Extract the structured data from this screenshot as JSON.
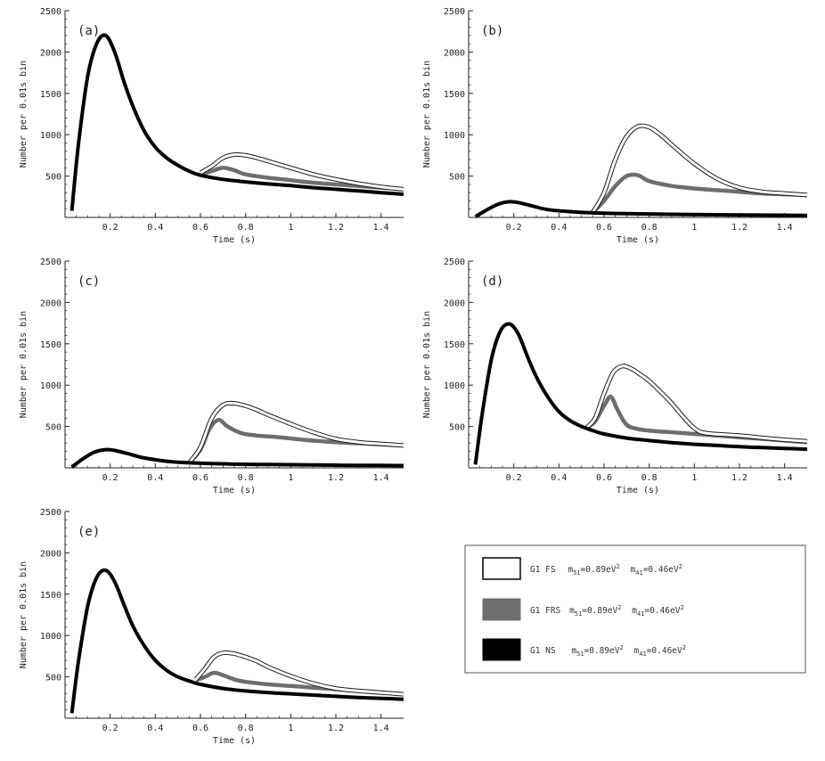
{
  "colors": {
    "fs": "#1a1a1a",
    "frs": "#6e6e6e",
    "ns": "#000000",
    "axis": "#222222"
  },
  "legend": {
    "items": [
      {
        "key": "fs",
        "text": "G1 FS",
        "swatch": "outline"
      },
      {
        "key": "frs",
        "text": "G1 FRS",
        "swatch": "gray"
      },
      {
        "key": "ns",
        "text": "G1 NS",
        "swatch": "black"
      }
    ],
    "mass_a_prefix": "m",
    "mass_a_sub": "51",
    "mass_a_value": "=0.89eV",
    "mass_b_prefix": "m",
    "mass_b_sub": "41",
    "mass_b_value": "=0.46eV",
    "exp": "2"
  },
  "chart_data": [
    {
      "type": "line",
      "panel": "(a)",
      "xlabel": "Time (s)",
      "ylabel": "Number per 0.01s bin",
      "xlim": [
        0,
        1.5
      ],
      "ylim": [
        0,
        2500
      ],
      "xticks": [
        0.2,
        0.4,
        0.6,
        0.8,
        1,
        1.2,
        1.4
      ],
      "xtick_labels": [
        "0.2",
        "0.4",
        "0.6",
        "0.8",
        "1",
        "1.2",
        "1.4"
      ],
      "yticks": [
        500,
        1000,
        1500,
        2000,
        2500
      ],
      "series": [
        {
          "key": "ns",
          "x": [
            0.03,
            0.06,
            0.1,
            0.14,
            0.18,
            0.22,
            0.26,
            0.3,
            0.35,
            0.4,
            0.45,
            0.5,
            0.55,
            0.6,
            0.7,
            0.8,
            0.9,
            1.0,
            1.1,
            1.2,
            1.3,
            1.4,
            1.5
          ],
          "y": [
            80,
            900,
            1700,
            2100,
            2200,
            2000,
            1650,
            1350,
            1050,
            850,
            720,
            630,
            560,
            510,
            460,
            430,
            405,
            385,
            360,
            340,
            320,
            300,
            280
          ]
        },
        {
          "key": "frs",
          "x": [
            0.6,
            0.65,
            0.7,
            0.75,
            0.8,
            0.9,
            1.0,
            1.1,
            1.2,
            1.3,
            1.4,
            1.5
          ],
          "y": [
            520,
            560,
            600,
            570,
            520,
            480,
            450,
            420,
            400,
            380,
            360,
            340
          ]
        },
        {
          "key": "fs",
          "x": [
            0.6,
            0.65,
            0.7,
            0.75,
            0.8,
            0.85,
            0.9,
            1.0,
            1.1,
            1.2,
            1.3,
            1.4,
            1.5
          ],
          "y": [
            540,
            620,
            720,
            760,
            750,
            720,
            680,
            600,
            520,
            460,
            410,
            370,
            340
          ]
        }
      ]
    },
    {
      "type": "line",
      "panel": "(b)",
      "xlabel": "Time (s)",
      "ylabel": "Number per 0.01s bin",
      "xlim": [
        0,
        1.5
      ],
      "ylim": [
        0,
        2500
      ],
      "xticks": [
        0.2,
        0.4,
        0.6,
        0.8,
        1,
        1.2,
        1.4
      ],
      "xtick_labels": [
        "0.2",
        "0.4",
        "0.6",
        "0.8",
        "1",
        "1.2",
        "1.4"
      ],
      "yticks": [
        500,
        1000,
        1500,
        2000,
        2500
      ],
      "series": [
        {
          "key": "ns",
          "x": [
            0.03,
            0.08,
            0.13,
            0.18,
            0.22,
            0.28,
            0.35,
            0.45,
            0.55,
            0.7,
            0.9,
            1.1,
            1.3,
            1.5
          ],
          "y": [
            10,
            90,
            160,
            190,
            180,
            140,
            95,
            70,
            55,
            45,
            38,
            32,
            28,
            25
          ]
        },
        {
          "key": "frs",
          "x": [
            0.55,
            0.6,
            0.65,
            0.7,
            0.75,
            0.8,
            0.9,
            1.0,
            1.1,
            1.2,
            1.3,
            1.4,
            1.5
          ],
          "y": [
            60,
            200,
            380,
            500,
            510,
            440,
            380,
            350,
            330,
            310,
            290,
            280,
            270
          ]
        },
        {
          "key": "fs",
          "x": [
            0.55,
            0.6,
            0.65,
            0.7,
            0.75,
            0.8,
            0.85,
            0.9,
            1.0,
            1.1,
            1.2,
            1.3,
            1.4,
            1.5
          ],
          "y": [
            60,
            300,
            700,
            980,
            1100,
            1090,
            1000,
            880,
            650,
            470,
            360,
            310,
            290,
            270
          ]
        }
      ]
    },
    {
      "type": "line",
      "panel": "(c)",
      "xlabel": "Time (s)",
      "ylabel": "Number per 0.01s bin",
      "xlim": [
        0,
        1.5
      ],
      "ylim": [
        0,
        2500
      ],
      "xticks": [
        0.2,
        0.4,
        0.6,
        0.8,
        1,
        1.2,
        1.4
      ],
      "xtick_labels": [
        "0.2",
        "0.4",
        "0.6",
        "0.8",
        "1",
        "1.2",
        "1.4"
      ],
      "yticks": [
        500,
        1000,
        1500,
        2000,
        2500
      ],
      "series": [
        {
          "key": "ns",
          "x": [
            0.03,
            0.08,
            0.13,
            0.18,
            0.22,
            0.28,
            0.35,
            0.45,
            0.55,
            0.7,
            0.9,
            1.1,
            1.3,
            1.5
          ],
          "y": [
            10,
            110,
            190,
            220,
            210,
            170,
            120,
            80,
            60,
            48,
            40,
            34,
            30,
            27
          ]
        },
        {
          "key": "frs",
          "x": [
            0.55,
            0.6,
            0.64,
            0.68,
            0.72,
            0.78,
            0.85,
            0.95,
            1.05,
            1.2,
            1.35,
            1.5
          ],
          "y": [
            60,
            220,
            470,
            580,
            500,
            420,
            390,
            370,
            340,
            310,
            290,
            270
          ]
        },
        {
          "key": "fs",
          "x": [
            0.55,
            0.6,
            0.65,
            0.7,
            0.75,
            0.8,
            0.85,
            0.9,
            1.0,
            1.1,
            1.2,
            1.3,
            1.4,
            1.5
          ],
          "y": [
            60,
            250,
            600,
            760,
            780,
            750,
            700,
            640,
            530,
            430,
            350,
            310,
            290,
            270
          ]
        }
      ]
    },
    {
      "type": "line",
      "panel": "(d)",
      "xlabel": "Time (s)",
      "ylabel": "Number per 0.01s bin",
      "xlim": [
        0,
        1.5
      ],
      "ylim": [
        0,
        2500
      ],
      "xticks": [
        0.2,
        0.4,
        0.6,
        0.8,
        1,
        1.2,
        1.4
      ],
      "xtick_labels": [
        "0.2",
        "0.4",
        "0.6",
        "0.8",
        "1",
        "1.2",
        "1.4"
      ],
      "yticks": [
        500,
        1000,
        1500,
        2000,
        2500
      ],
      "series": [
        {
          "key": "ns",
          "x": [
            0.03,
            0.06,
            0.1,
            0.14,
            0.18,
            0.22,
            0.26,
            0.3,
            0.35,
            0.4,
            0.45,
            0.5,
            0.55,
            0.6,
            0.7,
            0.8,
            0.9,
            1.0,
            1.1,
            1.2,
            1.3,
            1.4,
            1.5
          ],
          "y": [
            40,
            650,
            1300,
            1650,
            1740,
            1620,
            1350,
            1100,
            860,
            680,
            570,
            500,
            450,
            410,
            360,
            330,
            305,
            285,
            270,
            255,
            245,
            235,
            225
          ]
        },
        {
          "key": "frs",
          "x": [
            0.52,
            0.56,
            0.6,
            0.63,
            0.66,
            0.7,
            0.75,
            0.8,
            0.9,
            1.0,
            1.1,
            1.2,
            1.3,
            1.4,
            1.5
          ],
          "y": [
            480,
            560,
            750,
            860,
            700,
            520,
            470,
            450,
            430,
            410,
            390,
            370,
            350,
            330,
            310
          ]
        },
        {
          "key": "fs",
          "x": [
            0.52,
            0.56,
            0.6,
            0.64,
            0.68,
            0.72,
            0.76,
            0.8,
            0.85,
            0.9,
            0.95,
            1.0,
            1.05,
            1.2,
            1.35,
            1.5
          ],
          "y": [
            480,
            600,
            900,
            1150,
            1230,
            1200,
            1130,
            1050,
            920,
            780,
            620,
            480,
            420,
            390,
            350,
            320
          ]
        }
      ]
    },
    {
      "type": "line",
      "panel": "(e)",
      "xlabel": "Time (s)",
      "ylabel": "Number per 0.01s bin",
      "xlim": [
        0,
        1.5
      ],
      "ylim": [
        0,
        2500
      ],
      "xticks": [
        0.2,
        0.4,
        0.6,
        0.8,
        1,
        1.2,
        1.4
      ],
      "xtick_labels": [
        "0.2",
        "0.4",
        "0.6",
        "0.8",
        "1",
        "1.2",
        "1.4"
      ],
      "yticks": [
        500,
        1000,
        1500,
        2000,
        2500
      ],
      "series": [
        {
          "key": "ns",
          "x": [
            0.03,
            0.06,
            0.1,
            0.14,
            0.18,
            0.22,
            0.26,
            0.3,
            0.35,
            0.4,
            0.45,
            0.5,
            0.55,
            0.6,
            0.7,
            0.8,
            0.9,
            1.0,
            1.1,
            1.2,
            1.3,
            1.4,
            1.5
          ],
          "y": [
            60,
            700,
            1350,
            1700,
            1790,
            1650,
            1380,
            1120,
            880,
            700,
            580,
            500,
            450,
            410,
            360,
            330,
            310,
            295,
            280,
            265,
            250,
            240,
            230
          ]
        },
        {
          "key": "frs",
          "x": [
            0.58,
            0.62,
            0.66,
            0.7,
            0.75,
            0.8,
            0.9,
            1.0,
            1.1,
            1.2,
            1.3,
            1.4,
            1.5
          ],
          "y": [
            460,
            500,
            550,
            520,
            470,
            440,
            410,
            390,
            370,
            350,
            330,
            310,
            290
          ]
        },
        {
          "key": "fs",
          "x": [
            0.58,
            0.62,
            0.66,
            0.7,
            0.75,
            0.8,
            0.85,
            0.9,
            1.0,
            1.1,
            1.2,
            1.3,
            1.4,
            1.5
          ],
          "y": [
            470,
            600,
            740,
            790,
            780,
            740,
            690,
            620,
            510,
            420,
            360,
            330,
            310,
            290
          ]
        }
      ]
    }
  ]
}
